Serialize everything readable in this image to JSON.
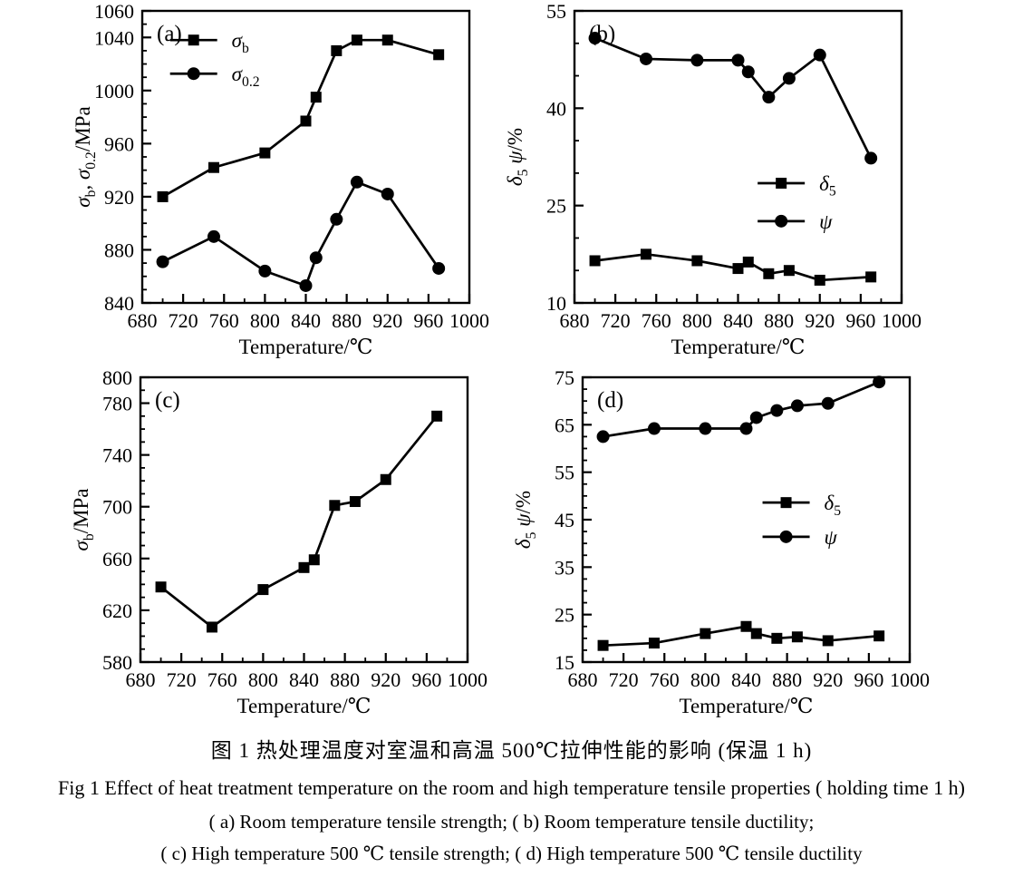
{
  "figure": {
    "caption_zh": "图 1  热处理温度对室温和高温 500℃拉伸性能的影响 (保温 1 h)",
    "caption_en": "Fig 1   Effect of heat treatment temperature on the room and high temperature tensile properties ( holding time 1 h)",
    "caption_items_ab": "( a)  Room  temperature tensile strength;   ( b)  Room  temperature tensile ductility;",
    "caption_items_cd": "( c)  High temperature 500 ℃ tensile strength;   ( d)  High temperature 500 ℃  tensile ductility"
  },
  "chart_data": [
    {
      "id": "a",
      "panel": "(a)",
      "type": "line",
      "title": "Room temperature tensile strength",
      "xlabel": "Temperature/℃",
      "ylabel_rich": [
        {
          "t": "σ",
          "i": 1
        },
        {
          "t": "b",
          "sub": 1
        },
        {
          "t": ", "
        },
        {
          "t": "σ",
          "i": 1
        },
        {
          "t": "0.2",
          "sub": 1
        },
        {
          "t": "/MPa"
        }
      ],
      "xlim": [
        680,
        1000
      ],
      "xticks": [
        680,
        720,
        760,
        800,
        840,
        880,
        920,
        960,
        1000
      ],
      "x_minor": 20,
      "ylim": [
        840,
        1060
      ],
      "yticks": [
        840,
        880,
        920,
        960,
        1000,
        1040,
        1060
      ],
      "y_minor": 10,
      "grid": false,
      "x": [
        700,
        750,
        800,
        840,
        850,
        870,
        890,
        920,
        970
      ],
      "series": [
        {
          "name": "sigma-b",
          "marker": "square",
          "label_rich": [
            {
              "t": "σ",
              "i": 1
            },
            {
              "t": "b",
              "sub": 1
            }
          ],
          "values": [
            920,
            942,
            953,
            977,
            995,
            1030,
            1038,
            1038,
            1027
          ]
        },
        {
          "name": "sigma-0-2",
          "marker": "circle",
          "label_rich": [
            {
              "t": "σ",
              "i": 1
            },
            {
              "t": "0.2",
              "sub": 1
            }
          ],
          "values": [
            871,
            890,
            864,
            853,
            874,
            903,
            931,
            922,
            866
          ]
        }
      ],
      "legend": {
        "position": "top-left",
        "x": 0.085,
        "y": [
          0.1,
          0.215
        ]
      }
    },
    {
      "id": "b",
      "panel": "(b)",
      "type": "line",
      "title": "Room temperature tensile ductility",
      "xlabel": "Temperature/℃",
      "ylabel_rich": [
        {
          "t": "δ",
          "i": 1
        },
        {
          "t": "5",
          "sub": 1
        },
        {
          "t": " ψ",
          "i": 1
        },
        {
          "t": "/%"
        }
      ],
      "xlim": [
        680,
        1000
      ],
      "xticks": [
        680,
        720,
        760,
        800,
        840,
        880,
        920,
        960,
        1000
      ],
      "x_minor": 20,
      "ylim": [
        10,
        55
      ],
      "yticks": [
        10,
        25,
        40,
        55
      ],
      "y_minor": 5,
      "grid": false,
      "x": [
        700,
        750,
        800,
        840,
        850,
        870,
        890,
        920,
        970
      ],
      "series": [
        {
          "name": "delta-5",
          "marker": "square",
          "label_rich": [
            {
              "t": "δ",
              "i": 1
            },
            {
              "t": "5",
              "sub": 1
            }
          ],
          "values": [
            16.5,
            17.5,
            16.5,
            15.3,
            16.3,
            14.5,
            15.0,
            13.5,
            14.0
          ]
        },
        {
          "name": "psi",
          "marker": "circle",
          "label_rich": [
            {
              "t": "ψ",
              "i": 1
            }
          ],
          "values": [
            50.8,
            47.6,
            47.4,
            47.4,
            45.6,
            41.7,
            44.6,
            48.2,
            32.3
          ]
        }
      ],
      "legend": {
        "position": "middle-right",
        "x": 0.56,
        "y": [
          0.59,
          0.72
        ]
      }
    },
    {
      "id": "c",
      "panel": "(c)",
      "type": "line",
      "title": "High temperature 500 ℃ tensile strength",
      "xlabel": "Temperature/℃",
      "ylabel_rich": [
        {
          "t": "σ",
          "i": 1
        },
        {
          "t": "b",
          "sub": 1
        },
        {
          "t": "/MPa"
        }
      ],
      "xlim": [
        680,
        1000
      ],
      "xticks": [
        680,
        720,
        760,
        800,
        840,
        880,
        920,
        960,
        1000
      ],
      "x_minor": 20,
      "ylim": [
        580,
        800
      ],
      "yticks": [
        580,
        620,
        660,
        700,
        740,
        780,
        800
      ],
      "y_minor": 10,
      "grid": false,
      "x": [
        700,
        750,
        800,
        840,
        850,
        870,
        890,
        920,
        970
      ],
      "series": [
        {
          "name": "sigma-b",
          "marker": "square",
          "label_rich": [
            {
              "t": "σ",
              "i": 1
            },
            {
              "t": "b",
              "sub": 1
            }
          ],
          "values": [
            638,
            607,
            636,
            653,
            659,
            701,
            704,
            721,
            770
          ]
        }
      ],
      "legend": null
    },
    {
      "id": "d",
      "panel": "(d)",
      "type": "line",
      "title": "High temperature 500 ℃ tensile ductility",
      "xlabel": "Temperature/℃",
      "ylabel_rich": [
        {
          "t": "δ",
          "i": 1
        },
        {
          "t": "5",
          "sub": 1
        },
        {
          "t": " ψ",
          "i": 1
        },
        {
          "t": "/%"
        }
      ],
      "xlim": [
        680,
        1000
      ],
      "xticks": [
        680,
        720,
        760,
        800,
        840,
        880,
        920,
        960,
        1000
      ],
      "x_minor": 20,
      "ylim": [
        15,
        75
      ],
      "yticks": [
        15,
        25,
        35,
        45,
        55,
        65,
        75
      ],
      "y_minor": 2.5,
      "grid": false,
      "x": [
        700,
        750,
        800,
        840,
        850,
        870,
        890,
        920,
        970
      ],
      "series": [
        {
          "name": "delta-5",
          "marker": "square",
          "label_rich": [
            {
              "t": "δ",
              "i": 1
            },
            {
              "t": "5",
              "sub": 1
            }
          ],
          "values": [
            18.5,
            19.0,
            21.0,
            22.5,
            21.0,
            20.0,
            20.3,
            19.5,
            20.5
          ]
        },
        {
          "name": "psi",
          "marker": "circle",
          "label_rich": [
            {
              "t": "ψ",
              "i": 1
            }
          ],
          "values": [
            62.5,
            64.2,
            64.2,
            64.2,
            66.5,
            68.0,
            69.0,
            69.5,
            74.0
          ]
        }
      ],
      "legend": {
        "position": "middle-right",
        "x": 0.55,
        "y": [
          0.44,
          0.56
        ]
      }
    }
  ]
}
